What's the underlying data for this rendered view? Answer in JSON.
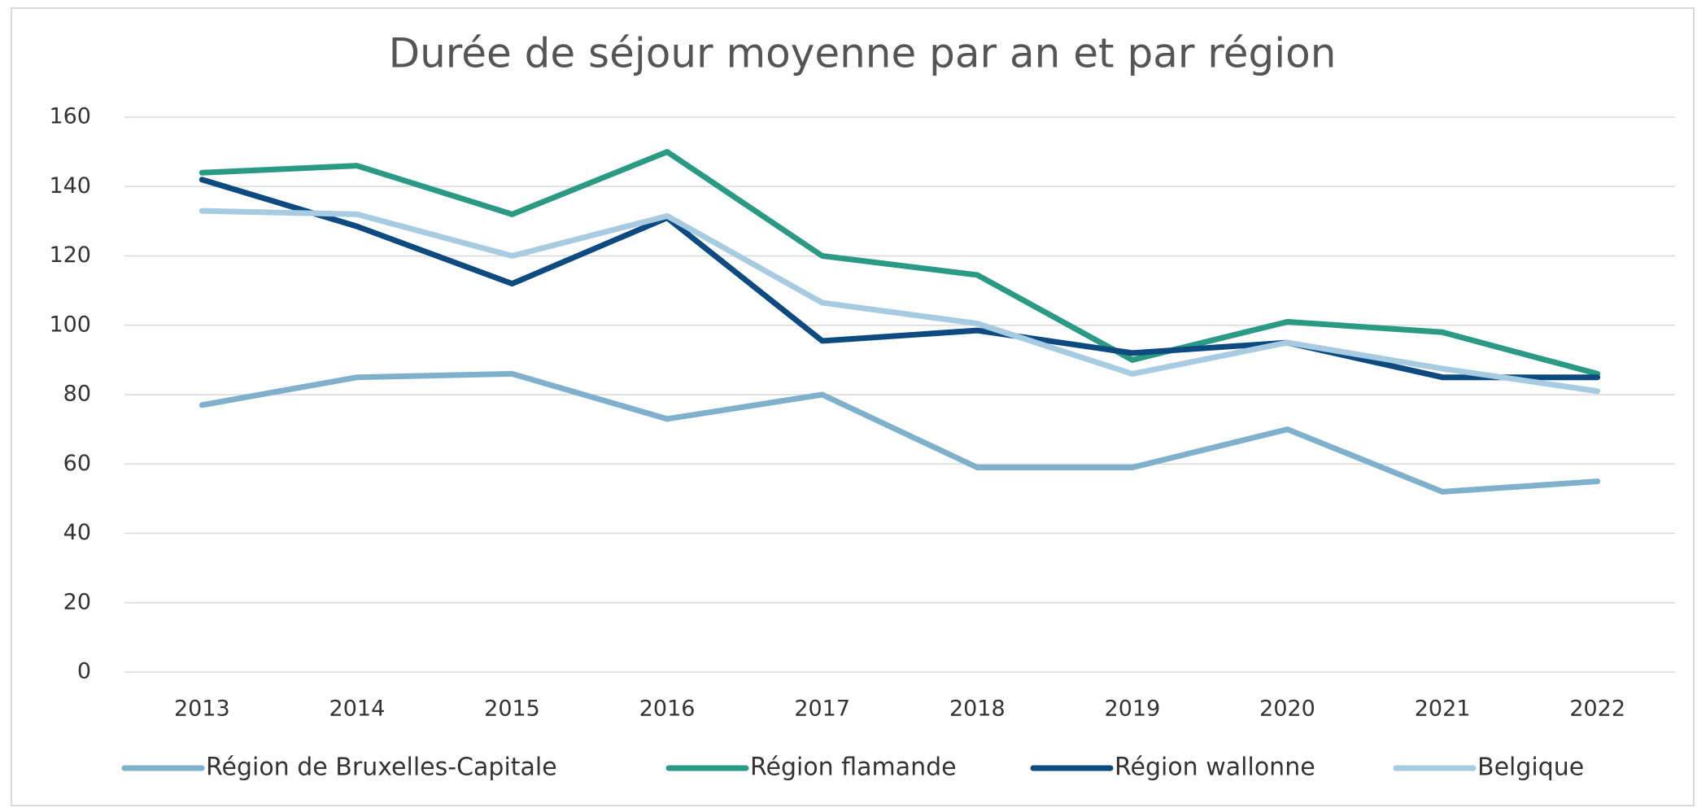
{
  "chart_data": {
    "type": "line",
    "title": "Durée de séjour moyenne par an et par région",
    "categories": [
      "2013",
      "2014",
      "2015",
      "2016",
      "2017",
      "2018",
      "2019",
      "2020",
      "2021",
      "2022"
    ],
    "series": [
      {
        "name": "Région de Bruxelles-Capitale",
        "color": "#7fb0cc",
        "values": [
          77,
          85,
          86,
          73,
          80,
          59,
          59,
          70,
          52,
          55
        ]
      },
      {
        "name": "Région flamande",
        "color": "#2a9a85",
        "values": [
          144,
          146,
          132,
          150,
          120,
          114.5,
          90,
          101,
          98,
          86
        ]
      },
      {
        "name": "Région wallonne",
        "color": "#0d4a80",
        "values": [
          142,
          128.5,
          112,
          131,
          95.5,
          98.5,
          92,
          95,
          85,
          85
        ]
      },
      {
        "name": "Belgique",
        "color": "#a7cbe0",
        "values": [
          133,
          132,
          120,
          131.5,
          106.5,
          100.5,
          86,
          95,
          87.5,
          81
        ]
      }
    ],
    "ylim": [
      0,
      160
    ],
    "yticks": [
      0,
      20,
      40,
      60,
      80,
      100,
      120,
      140,
      160
    ],
    "grid": true,
    "legend": "bottom"
  }
}
